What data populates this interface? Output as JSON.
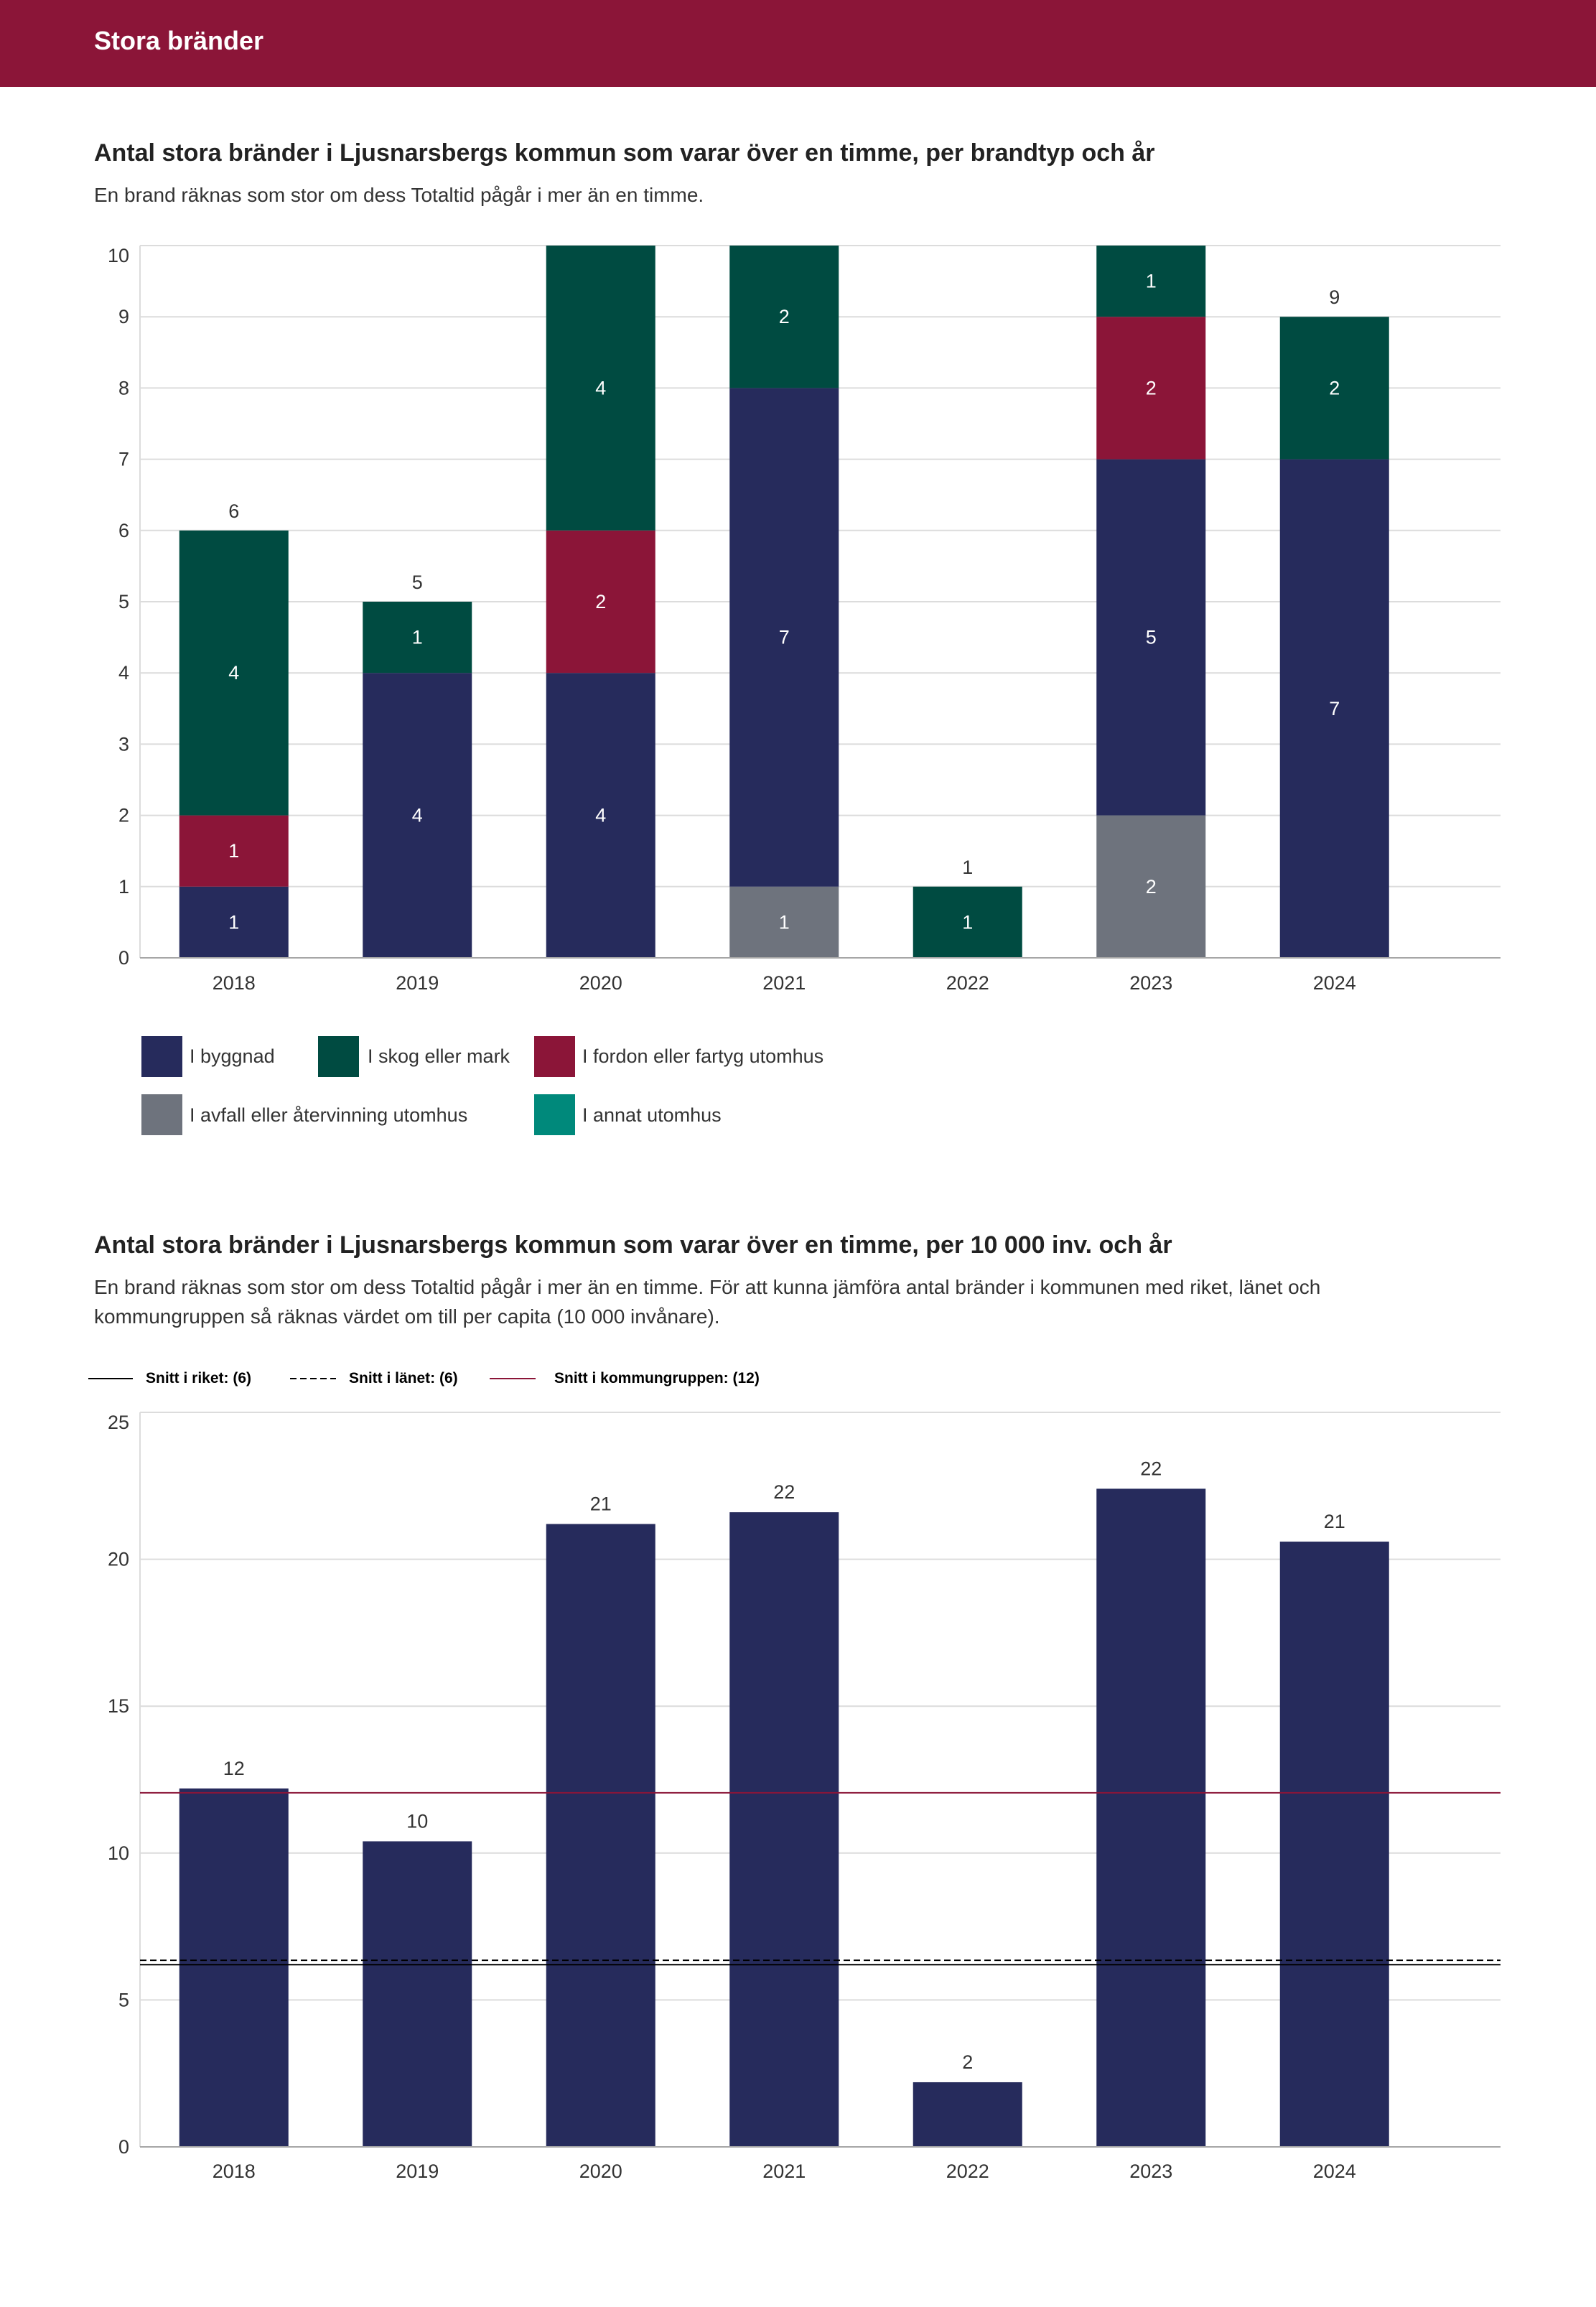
{
  "header": {
    "title": "Stora bränder",
    "background": "#8B1538"
  },
  "chart_data": [
    {
      "type": "bar",
      "stacked": true,
      "title": "Antal stora bränder i Ljusnarsbergs kommun som varar över en timme, per brandtyp och år",
      "subtitle": "En brand räknas som stor om dess Totaltid pågår i mer än en timme.",
      "categories": [
        "2018",
        "2019",
        "2020",
        "2021",
        "2022",
        "2023",
        "2024"
      ],
      "ylim": [
        0,
        10
      ],
      "yticks": [
        0,
        1,
        2,
        3,
        4,
        5,
        6,
        7,
        8,
        9,
        10
      ],
      "grid": true,
      "legend_position": "bottom",
      "series": [
        {
          "name": "I avfall eller återvinning utomhus",
          "color": "#6E737D",
          "values": [
            0,
            0,
            0,
            1,
            0,
            2,
            0
          ]
        },
        {
          "name": "I byggnad",
          "color": "#262B5C",
          "values": [
            1,
            4,
            4,
            7,
            0,
            5,
            7
          ]
        },
        {
          "name": "I fordon eller fartyg utomhus",
          "color": "#8B1538",
          "values": [
            1,
            0,
            2,
            0,
            0,
            2,
            0
          ]
        },
        {
          "name": "I skog eller mark",
          "color": "#004B41",
          "values": [
            4,
            1,
            4,
            2,
            1,
            1,
            2
          ]
        },
        {
          "name": "I annat utomhus",
          "color": "#00897B",
          "values": [
            0,
            0,
            0,
            0,
            0,
            0,
            0
          ]
        }
      ]
    },
    {
      "type": "bar",
      "title": "Antal stora bränder i Ljusnarsbergs kommun som varar över en timme, per 10 000 inv. och år",
      "subtitle_lines": [
        "En brand räknas som stor om dess Totaltid pågår i mer än en timme. För att kunna jämföra antal bränder i kommunen med riket, länet och",
        "kommungruppen så räknas värdet om till per capita (10 000 invånare)."
      ],
      "categories": [
        "2018",
        "2019",
        "2020",
        "2021",
        "2022",
        "2023",
        "2024"
      ],
      "values": [
        12.2,
        10.4,
        21.2,
        21.6,
        2.2,
        22.4,
        20.6
      ],
      "value_labels": [
        "12",
        "10",
        "21",
        "22",
        "2",
        "22",
        "21"
      ],
      "bar_color": "#262B5C",
      "ylim": [
        0,
        25
      ],
      "yticks": [
        0,
        5,
        10,
        15,
        20,
        25
      ],
      "grid": true,
      "legend_position": "top-left",
      "reference_lines": [
        {
          "name": "Snitt i riket: (6)",
          "value": 6.2,
          "style": "solid",
          "color": "#000000"
        },
        {
          "name": "Snitt i länet: (6)",
          "value": 6.35,
          "style": "dashed",
          "color": "#000000"
        },
        {
          "name": "Snitt i kommungruppen: (12)",
          "value": 12.05,
          "style": "solid",
          "color": "#8B1538"
        }
      ]
    }
  ]
}
